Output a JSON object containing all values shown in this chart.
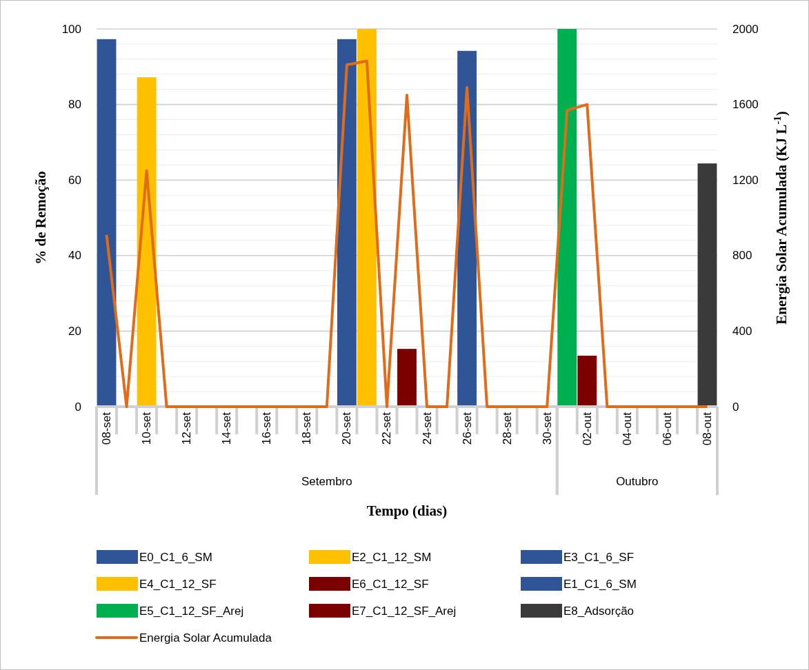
{
  "chart_data": {
    "type": "bar",
    "xlabel": "Tempo (dias)",
    "ylabel": "% de Remoção",
    "y2label": "Energia Solar Acumulada (KJ L$^{-1}$)",
    "categories": [
      "08-set",
      null,
      "10-set",
      null,
      "12-set",
      null,
      "14-set",
      null,
      "16-set",
      null,
      "18-set",
      null,
      "20-set",
      null,
      "22-set",
      null,
      "24-set",
      null,
      "26-set",
      null,
      "28-set",
      null,
      "30-set",
      null,
      "02-out",
      null,
      "04-out",
      null,
      "06-out",
      null,
      "08-out"
    ],
    "annotations": [
      "Setembro",
      "Outubro"
    ],
    "ylim": [
      0,
      100
    ],
    "yticks": [
      0,
      {
        "value": 4,
        "label": null
      },
      {
        "value": 8,
        "label": null
      },
      {
        "value": 12,
        "label": null
      },
      {
        "value": 16,
        "label": null
      },
      20,
      {
        "value": 24,
        "label": null
      },
      {
        "value": 28,
        "label": null
      },
      {
        "value": 32,
        "label": null
      },
      {
        "value": 36,
        "label": null
      },
      40,
      {
        "value": 44,
        "label": null
      },
      {
        "value": 48,
        "label": null
      },
      {
        "value": 52,
        "label": null
      },
      {
        "value": 56,
        "label": null
      },
      60,
      {
        "value": 64,
        "label": null
      },
      {
        "value": 68,
        "label": null
      },
      {
        "value": 72,
        "label": null
      },
      {
        "value": 76,
        "label": null
      },
      80,
      {
        "value": 84,
        "label": null
      },
      {
        "value": 88,
        "label": null
      },
      {
        "value": 92,
        "label": null
      },
      {
        "value": 96,
        "label": null
      },
      100
    ],
    "y2lim": [
      0,
      2000
    ],
    "y2ticks": [
      0,
      400,
      800,
      1200,
      1600,
      2000
    ],
    "grid": "y",
    "legend": "bottom",
    "series": [
      {
        "name": "E0_C1_6_SM",
        "color": "#2f5597",
        "values": [
          97.3,
          null,
          null,
          null,
          null,
          null,
          null,
          null,
          null,
          null,
          null,
          null,
          null,
          null,
          null,
          null,
          null,
          null,
          null,
          null,
          null,
          null,
          null,
          null,
          null,
          null,
          null,
          null,
          null,
          null,
          null
        ]
      },
      {
        "name": "E2_C1_12_SM",
        "color": "#ffc000",
        "values": [
          null,
          null,
          87.2,
          null,
          null,
          null,
          null,
          null,
          null,
          null,
          null,
          null,
          null,
          null,
          null,
          null,
          null,
          null,
          null,
          null,
          null,
          null,
          null,
          null,
          null,
          null,
          null,
          null,
          null,
          null,
          null
        ]
      },
      {
        "name": "E3_C1_6_SF",
        "color": "#2f5597",
        "values": [
          null,
          null,
          null,
          null,
          null,
          null,
          null,
          null,
          null,
          null,
          null,
          null,
          97.3,
          null,
          null,
          null,
          null,
          null,
          null,
          null,
          null,
          null,
          null,
          null,
          null,
          null,
          null,
          null,
          null,
          null,
          null
        ]
      },
      {
        "name": "E4_C1_12_SF",
        "color": "#ffc000",
        "values": [
          null,
          null,
          null,
          null,
          null,
          null,
          null,
          null,
          null,
          null,
          null,
          null,
          null,
          100,
          null,
          null,
          null,
          null,
          null,
          null,
          null,
          null,
          null,
          null,
          null,
          null,
          null,
          null,
          null,
          null,
          null
        ]
      },
      {
        "name": "E6_C1_12_SF",
        "color": "#7b0000",
        "values": [
          null,
          null,
          null,
          null,
          null,
          null,
          null,
          null,
          null,
          null,
          null,
          null,
          null,
          null,
          null,
          15.3,
          null,
          null,
          null,
          null,
          null,
          null,
          null,
          null,
          null,
          null,
          null,
          null,
          null,
          null,
          null
        ]
      },
      {
        "name": "E1_C1_6_SM",
        "color": "#2f5597",
        "values": [
          null,
          null,
          null,
          null,
          null,
          null,
          null,
          null,
          null,
          null,
          null,
          null,
          null,
          null,
          null,
          null,
          null,
          null,
          94.2,
          null,
          null,
          null,
          null,
          null,
          null,
          null,
          null,
          null,
          null,
          null,
          null
        ]
      },
      {
        "name": "E5_C1_12_SF_Arej",
        "color": "#00b050",
        "values": [
          null,
          null,
          null,
          null,
          null,
          null,
          null,
          null,
          null,
          null,
          null,
          null,
          null,
          null,
          null,
          null,
          null,
          null,
          null,
          null,
          null,
          null,
          null,
          100,
          null,
          null,
          null,
          null,
          null,
          null,
          null
        ]
      },
      {
        "name": "E7_C1_12_SF_Arej",
        "color": "#7b0000",
        "values": [
          null,
          null,
          null,
          null,
          null,
          null,
          null,
          null,
          null,
          null,
          null,
          null,
          null,
          null,
          null,
          null,
          null,
          null,
          null,
          null,
          null,
          null,
          null,
          null,
          13.5,
          null,
          null,
          null,
          null,
          null,
          null
        ]
      },
      {
        "name": "E8_Adsorção",
        "color": "#3a3a3a",
        "values": [
          null,
          null,
          null,
          null,
          null,
          null,
          null,
          null,
          null,
          null,
          null,
          null,
          null,
          null,
          null,
          null,
          null,
          null,
          null,
          null,
          null,
          null,
          null,
          null,
          null,
          null,
          null,
          null,
          null,
          null,
          64.4
        ]
      },
      {
        "name": "Energia Solar Acumulada",
        "type": "line",
        "axis": "y2",
        "color": "#e06c1a",
        "values": [
          910,
          0,
          1250,
          0,
          0,
          0,
          0,
          0,
          0,
          0,
          0,
          0,
          1810,
          1830,
          0,
          1650,
          0,
          0,
          1690,
          0,
          0,
          0,
          0,
          1570,
          1600,
          0,
          0,
          0,
          0,
          0,
          0
        ]
      }
    ]
  }
}
